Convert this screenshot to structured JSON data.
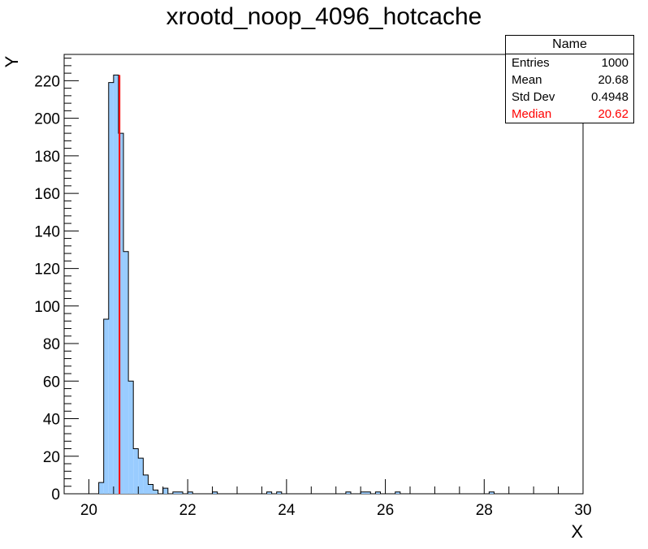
{
  "title": "xrootd_noop_4096_hotcache",
  "stats": {
    "header": "Name",
    "rows": [
      {
        "label": "Entries",
        "value": "1000",
        "color": "#000000"
      },
      {
        "label": "Mean",
        "value": "20.68",
        "color": "#000000"
      },
      {
        "label": "Std Dev",
        "value": "0.4948",
        "color": "#000000"
      },
      {
        "label": "Median",
        "value": "20.62",
        "color": "#ff0000"
      }
    ]
  },
  "chart_data": {
    "type": "histogram",
    "title": "xrootd_noop_4096_hotcache",
    "xlabel": "X",
    "ylabel": "Y",
    "xlim": [
      19.5,
      30
    ],
    "ylim": [
      0,
      234
    ],
    "bin_width": 0.1,
    "fill_color": "#99ccff",
    "median_line": {
      "x": 20.62,
      "color": "#ff0000"
    },
    "x_ticks": [
      20,
      22,
      24,
      26,
      28,
      30
    ],
    "y_ticks": [
      0,
      20,
      40,
      60,
      80,
      100,
      120,
      140,
      160,
      180,
      200,
      220
    ],
    "bins": [
      {
        "x": 20.2,
        "y": 6
      },
      {
        "x": 20.3,
        "y": 93
      },
      {
        "x": 20.4,
        "y": 219
      },
      {
        "x": 20.5,
        "y": 223
      },
      {
        "x": 20.6,
        "y": 192
      },
      {
        "x": 20.7,
        "y": 129
      },
      {
        "x": 20.8,
        "y": 60
      },
      {
        "x": 20.9,
        "y": 24
      },
      {
        "x": 21.0,
        "y": 19
      },
      {
        "x": 21.1,
        "y": 10
      },
      {
        "x": 21.2,
        "y": 5
      },
      {
        "x": 21.3,
        "y": 2
      },
      {
        "x": 21.5,
        "y": 3
      },
      {
        "x": 21.7,
        "y": 1
      },
      {
        "x": 21.8,
        "y": 1
      },
      {
        "x": 22.0,
        "y": 1
      },
      {
        "x": 22.5,
        "y": 1
      },
      {
        "x": 23.6,
        "y": 1
      },
      {
        "x": 23.8,
        "y": 1
      },
      {
        "x": 25.2,
        "y": 1
      },
      {
        "x": 25.5,
        "y": 1
      },
      {
        "x": 25.6,
        "y": 1
      },
      {
        "x": 25.8,
        "y": 1
      },
      {
        "x": 26.2,
        "y": 1
      },
      {
        "x": 28.1,
        "y": 1
      }
    ]
  }
}
